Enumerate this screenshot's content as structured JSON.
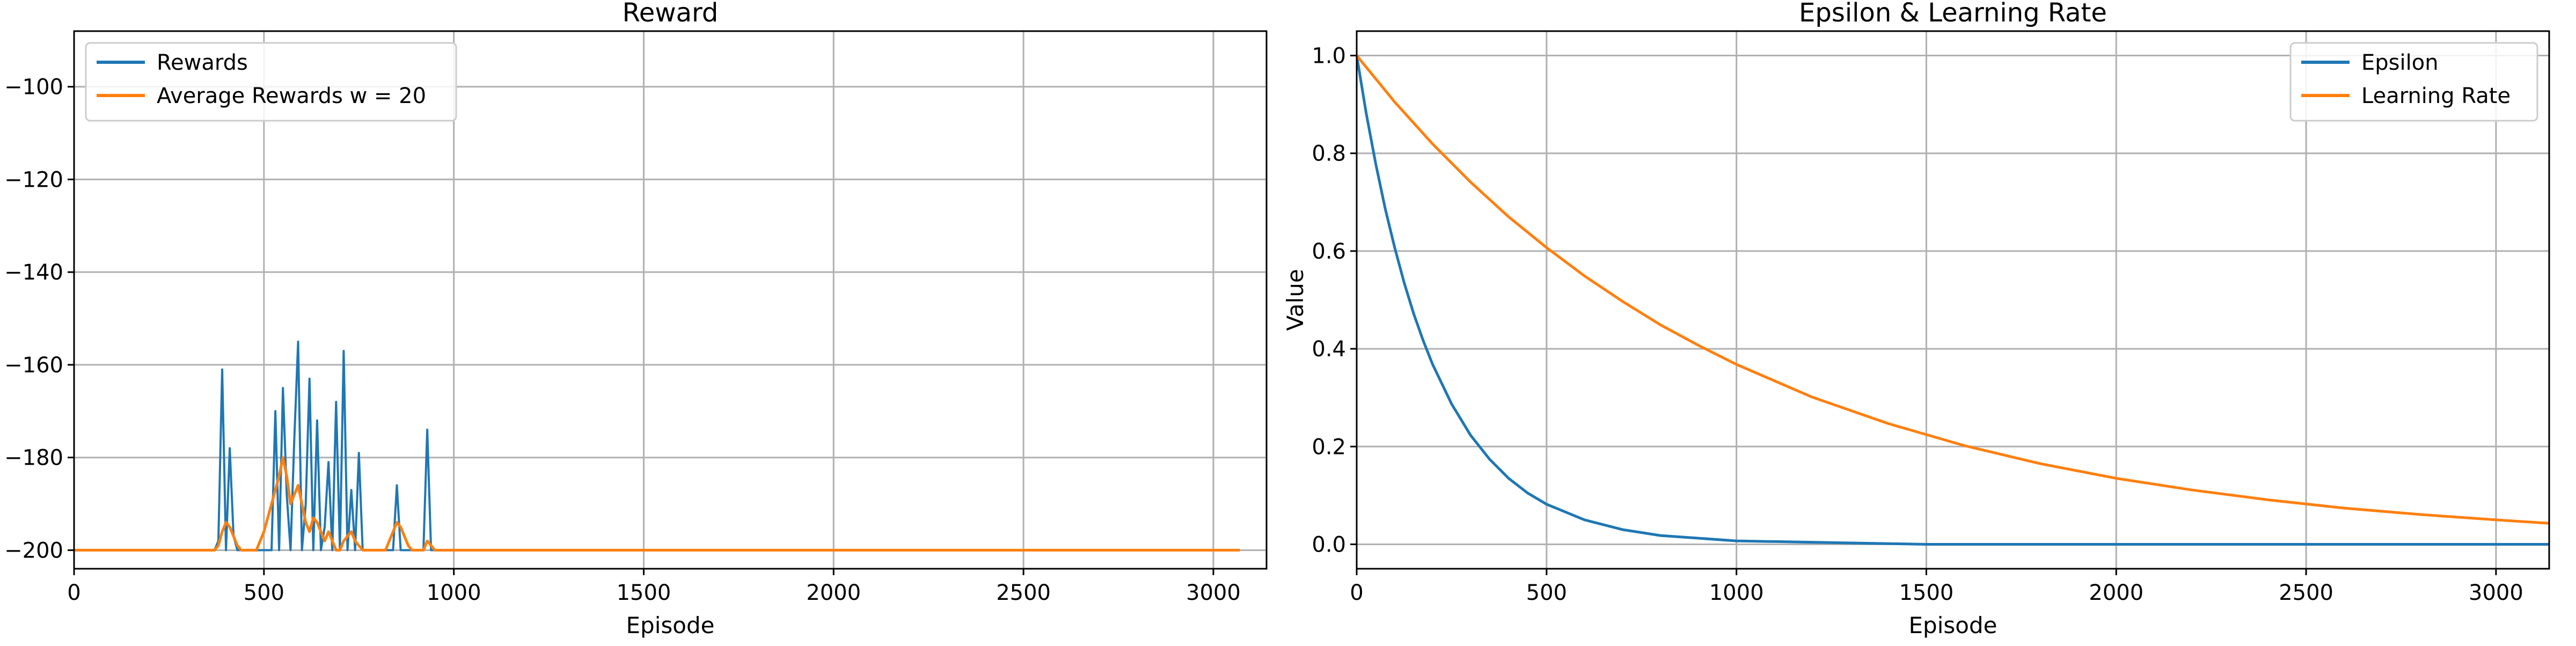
{
  "chart_data": [
    {
      "type": "line",
      "title": "Reward",
      "xlabel": "Episode",
      "ylabel": "",
      "xlim": [
        0,
        3140
      ],
      "ylim": [
        -204,
        -88
      ],
      "xticks": [
        0,
        500,
        1000,
        1500,
        2000,
        2500,
        3000
      ],
      "yticks": [
        -200,
        -180,
        -160,
        -140,
        -120,
        -100
      ],
      "grid": true,
      "legend_position": "top-left",
      "colors": {
        "rewards": "#1f77b4",
        "average": "#ff7f0e"
      },
      "series": [
        {
          "name": "Rewards",
          "color": "#1f77b4",
          "note": "noisy per-episode reward; sampled approximately every 10 episodes",
          "x_start": 0,
          "x_step": 10,
          "values": [
            -200,
            -200,
            -200,
            -200,
            -200,
            -200,
            -200,
            -200,
            -200,
            -200,
            -200,
            -200,
            -200,
            -200,
            -200,
            -200,
            -200,
            -200,
            -200,
            -200,
            -200,
            -200,
            -200,
            -200,
            -200,
            -200,
            -200,
            -200,
            -200,
            -200,
            -200,
            -200,
            -200,
            -200,
            -200,
            -200,
            -200,
            -200,
            -198,
            -161,
            -200,
            -178,
            -197,
            -200,
            -200,
            -200,
            -200,
            -200,
            -200,
            -200,
            -200,
            -200,
            -200,
            -170,
            -200,
            -165,
            -188,
            -200,
            -176,
            -155,
            -200,
            -190,
            -163,
            -200,
            -172,
            -200,
            -195,
            -181,
            -200,
            -168,
            -200,
            -157,
            -200,
            -187,
            -200,
            -179,
            -200,
            -200,
            -200,
            -200,
            -200,
            -200,
            -200,
            -200,
            -200,
            -186,
            -200,
            -200,
            -200,
            -200,
            -200,
            -200,
            -200,
            -174,
            -200,
            -200,
            -200,
            -200,
            -200,
            -200,
            -200,
            -200,
            -200,
            -200,
            -200,
            -200,
            -200,
            -200,
            -200,
            -200,
            -200,
            -200,
            -200,
            -200,
            -200,
            -200,
            -200,
            -200,
            -200,
            -200,
            -200,
            -200,
            -200,
            -200,
            -200,
            -200,
            -200,
            -200,
            -200,
            -200,
            -200,
            -200,
            -200,
            -200,
            -200,
            -200,
            -200,
            -200,
            -200,
            -200,
            -200,
            -200,
            -200,
            -200,
            -200,
            -200,
            -200,
            -200,
            -200,
            -200,
            -200,
            -200,
            -200,
            -200,
            -200,
            -200,
            -200,
            -200,
            -200,
            -200,
            -200,
            -200,
            -200,
            -200,
            -200,
            -200,
            -200,
            -200,
            -200,
            -200,
            -200,
            -200,
            -200,
            -200,
            -200,
            -200,
            -200,
            -200,
            -200,
            -200,
            -200,
            -200,
            -200,
            -200,
            -200,
            -200,
            -200,
            -200,
            -200,
            -200,
            -200,
            -200,
            -200,
            -200,
            -200,
            -200,
            -200,
            -200,
            -200,
            -200,
            -200,
            -200,
            -200,
            -200,
            -200,
            -200,
            -200,
            -200,
            -200,
            -200,
            -200,
            -200,
            -200,
            -200,
            -200,
            -200,
            -200,
            -200,
            -200,
            -200,
            -200,
            -200,
            -200,
            -200,
            -200,
            -200,
            -200,
            -200,
            -200,
            -200,
            -200,
            -200,
            -200,
            -200,
            -200,
            -200,
            -200,
            -200,
            -200,
            -200,
            -200,
            -200,
            -200,
            -200,
            -200,
            -200,
            -200,
            -200,
            -200,
            -200,
            -200,
            -200,
            -200,
            -200,
            -200,
            -200,
            -200,
            -200,
            -200,
            -200,
            -200,
            -200,
            -200,
            -200,
            -200,
            -200,
            -200,
            -200,
            -200,
            -200,
            -200,
            -200,
            -200,
            -200,
            -200,
            -200,
            -200,
            -200,
            -200,
            -200,
            -200,
            -200,
            -200,
            -200,
            -200,
            -200,
            -200,
            -200,
            -200,
            -200,
            -200,
            -200,
            -200,
            -200,
            -200,
            -200,
            -200,
            -200,
            -200,
            -200,
            -200,
            -200,
            -200,
            -200,
            -200,
            -200,
            -200,
            -200
          ]
        },
        {
          "name": "Average Rewards w = 20",
          "color": "#ff7f0e",
          "note": "moving average; sampled approximately every 10 episodes",
          "x_start": 0,
          "x_step": 10,
          "values": [
            -200,
            -200,
            -200,
            -200,
            -200,
            -200,
            -200,
            -200,
            -200,
            -200,
            -200,
            -200,
            -200,
            -200,
            -200,
            -200,
            -200,
            -200,
            -200,
            -200,
            -200,
            -200,
            -200,
            -200,
            -200,
            -200,
            -200,
            -200,
            -200,
            -200,
            -200,
            -200,
            -200,
            -200,
            -200,
            -200,
            -200,
            -200,
            -199,
            -196,
            -194,
            -195,
            -197,
            -199,
            -200,
            -200,
            -200,
            -200,
            -200,
            -198,
            -196,
            -193,
            -190,
            -187,
            -184,
            -180,
            -184,
            -190,
            -188,
            -186,
            -190,
            -194,
            -196,
            -193,
            -194,
            -196,
            -198,
            -196,
            -198,
            -200,
            -200,
            -198,
            -197,
            -196,
            -198,
            -199,
            -200,
            -200,
            -200,
            -200,
            -200,
            -200,
            -200,
            -198,
            -196,
            -194,
            -195,
            -197,
            -199,
            -200,
            -200,
            -200,
            -200,
            -198,
            -199,
            -200,
            -200,
            -200,
            -200,
            -200,
            -200,
            -200,
            -200,
            -200,
            -200,
            -200,
            -200,
            -200,
            -200,
            -200,
            -200,
            -200,
            -200,
            -200,
            -200,
            -200,
            -200,
            -200,
            -200,
            -200,
            -200,
            -200,
            -200,
            -200,
            -200,
            -200,
            -200,
            -200,
            -200,
            -200,
            -200,
            -200,
            -200,
            -200,
            -200,
            -200,
            -200,
            -200,
            -200,
            -200,
            -200,
            -200,
            -200,
            -200,
            -200,
            -200,
            -200,
            -200,
            -200,
            -200,
            -200,
            -200,
            -200,
            -200,
            -200,
            -200,
            -200,
            -200,
            -200,
            -200,
            -200,
            -200,
            -200,
            -200,
            -200,
            -200,
            -200,
            -200,
            -200,
            -200,
            -200,
            -200,
            -200,
            -200,
            -200,
            -200,
            -200,
            -200,
            -200,
            -200,
            -200,
            -200,
            -200,
            -200,
            -200,
            -200,
            -200,
            -200,
            -200,
            -200,
            -200,
            -200,
            -200,
            -200,
            -200,
            -200,
            -200,
            -200,
            -200,
            -200,
            -200,
            -200,
            -200,
            -200,
            -200,
            -200,
            -200,
            -200,
            -200,
            -200,
            -200,
            -200,
            -200,
            -200,
            -200,
            -200,
            -200,
            -200,
            -200,
            -200,
            -200,
            -200,
            -200,
            -200,
            -200,
            -200,
            -200,
            -200,
            -200,
            -200,
            -200,
            -200,
            -200,
            -200,
            -200,
            -200,
            -200,
            -200,
            -200,
            -200,
            -200,
            -200,
            -200,
            -200,
            -200,
            -200,
            -200,
            -200,
            -200,
            -200,
            -200,
            -200,
            -200,
            -200,
            -200,
            -200,
            -200,
            -200,
            -200,
            -200,
            -200,
            -200,
            -200,
            -200,
            -200,
            -200,
            -200,
            -200,
            -200,
            -200,
            -200,
            -200,
            -200,
            -200,
            -200,
            -200,
            -200,
            -200,
            -200,
            -200,
            -200,
            -200,
            -200,
            -200,
            -200,
            -200,
            -200,
            -200,
            -200,
            -200,
            -200,
            -200,
            -200,
            -200,
            -200,
            -200,
            -200,
            -200,
            -200,
            -200,
            -200,
            -200,
            -200,
            -200,
            -200,
            -200,
            -200,
            -200
          ]
        }
      ]
    },
    {
      "type": "line",
      "title": "Epsilon & Learning Rate",
      "xlabel": "Episode",
      "ylabel": "Value",
      "xlim": [
        0,
        3140
      ],
      "ylim": [
        -0.05,
        1.05
      ],
      "xticks": [
        0,
        500,
        1000,
        1500,
        2000,
        2500,
        3000
      ],
      "yticks": [
        0.0,
        0.2,
        0.4,
        0.6,
        0.8,
        1.0
      ],
      "ytick_labels": [
        "0.0",
        "0.2",
        "0.4",
        "0.6",
        "0.8",
        "1.0"
      ],
      "grid": true,
      "legend_position": "top-right",
      "series": [
        {
          "name": "Epsilon",
          "color": "#1f77b4",
          "x": [
            0,
            25,
            50,
            75,
            100,
            125,
            150,
            175,
            200,
            250,
            300,
            350,
            400,
            450,
            500,
            600,
            700,
            800,
            1000,
            1500,
            2000,
            2500,
            3000,
            3140
          ],
          "values": [
            1.0,
            0.882,
            0.779,
            0.687,
            0.607,
            0.535,
            0.472,
            0.417,
            0.368,
            0.287,
            0.223,
            0.174,
            0.135,
            0.105,
            0.082,
            0.05,
            0.03,
            0.018,
            0.007,
            0.0,
            0.0,
            0.0,
            0.0,
            0.0
          ]
        },
        {
          "name": "Learning Rate",
          "color": "#ff7f0e",
          "x": [
            0,
            100,
            200,
            300,
            400,
            500,
            600,
            700,
            800,
            900,
            1000,
            1200,
            1400,
            1600,
            1800,
            2000,
            2200,
            2400,
            2600,
            2800,
            3000,
            3140
          ],
          "values": [
            1.0,
            0.905,
            0.819,
            0.741,
            0.67,
            0.607,
            0.549,
            0.497,
            0.449,
            0.407,
            0.368,
            0.301,
            0.247,
            0.202,
            0.165,
            0.135,
            0.111,
            0.091,
            0.074,
            0.061,
            0.05,
            0.043
          ]
        }
      ]
    }
  ]
}
